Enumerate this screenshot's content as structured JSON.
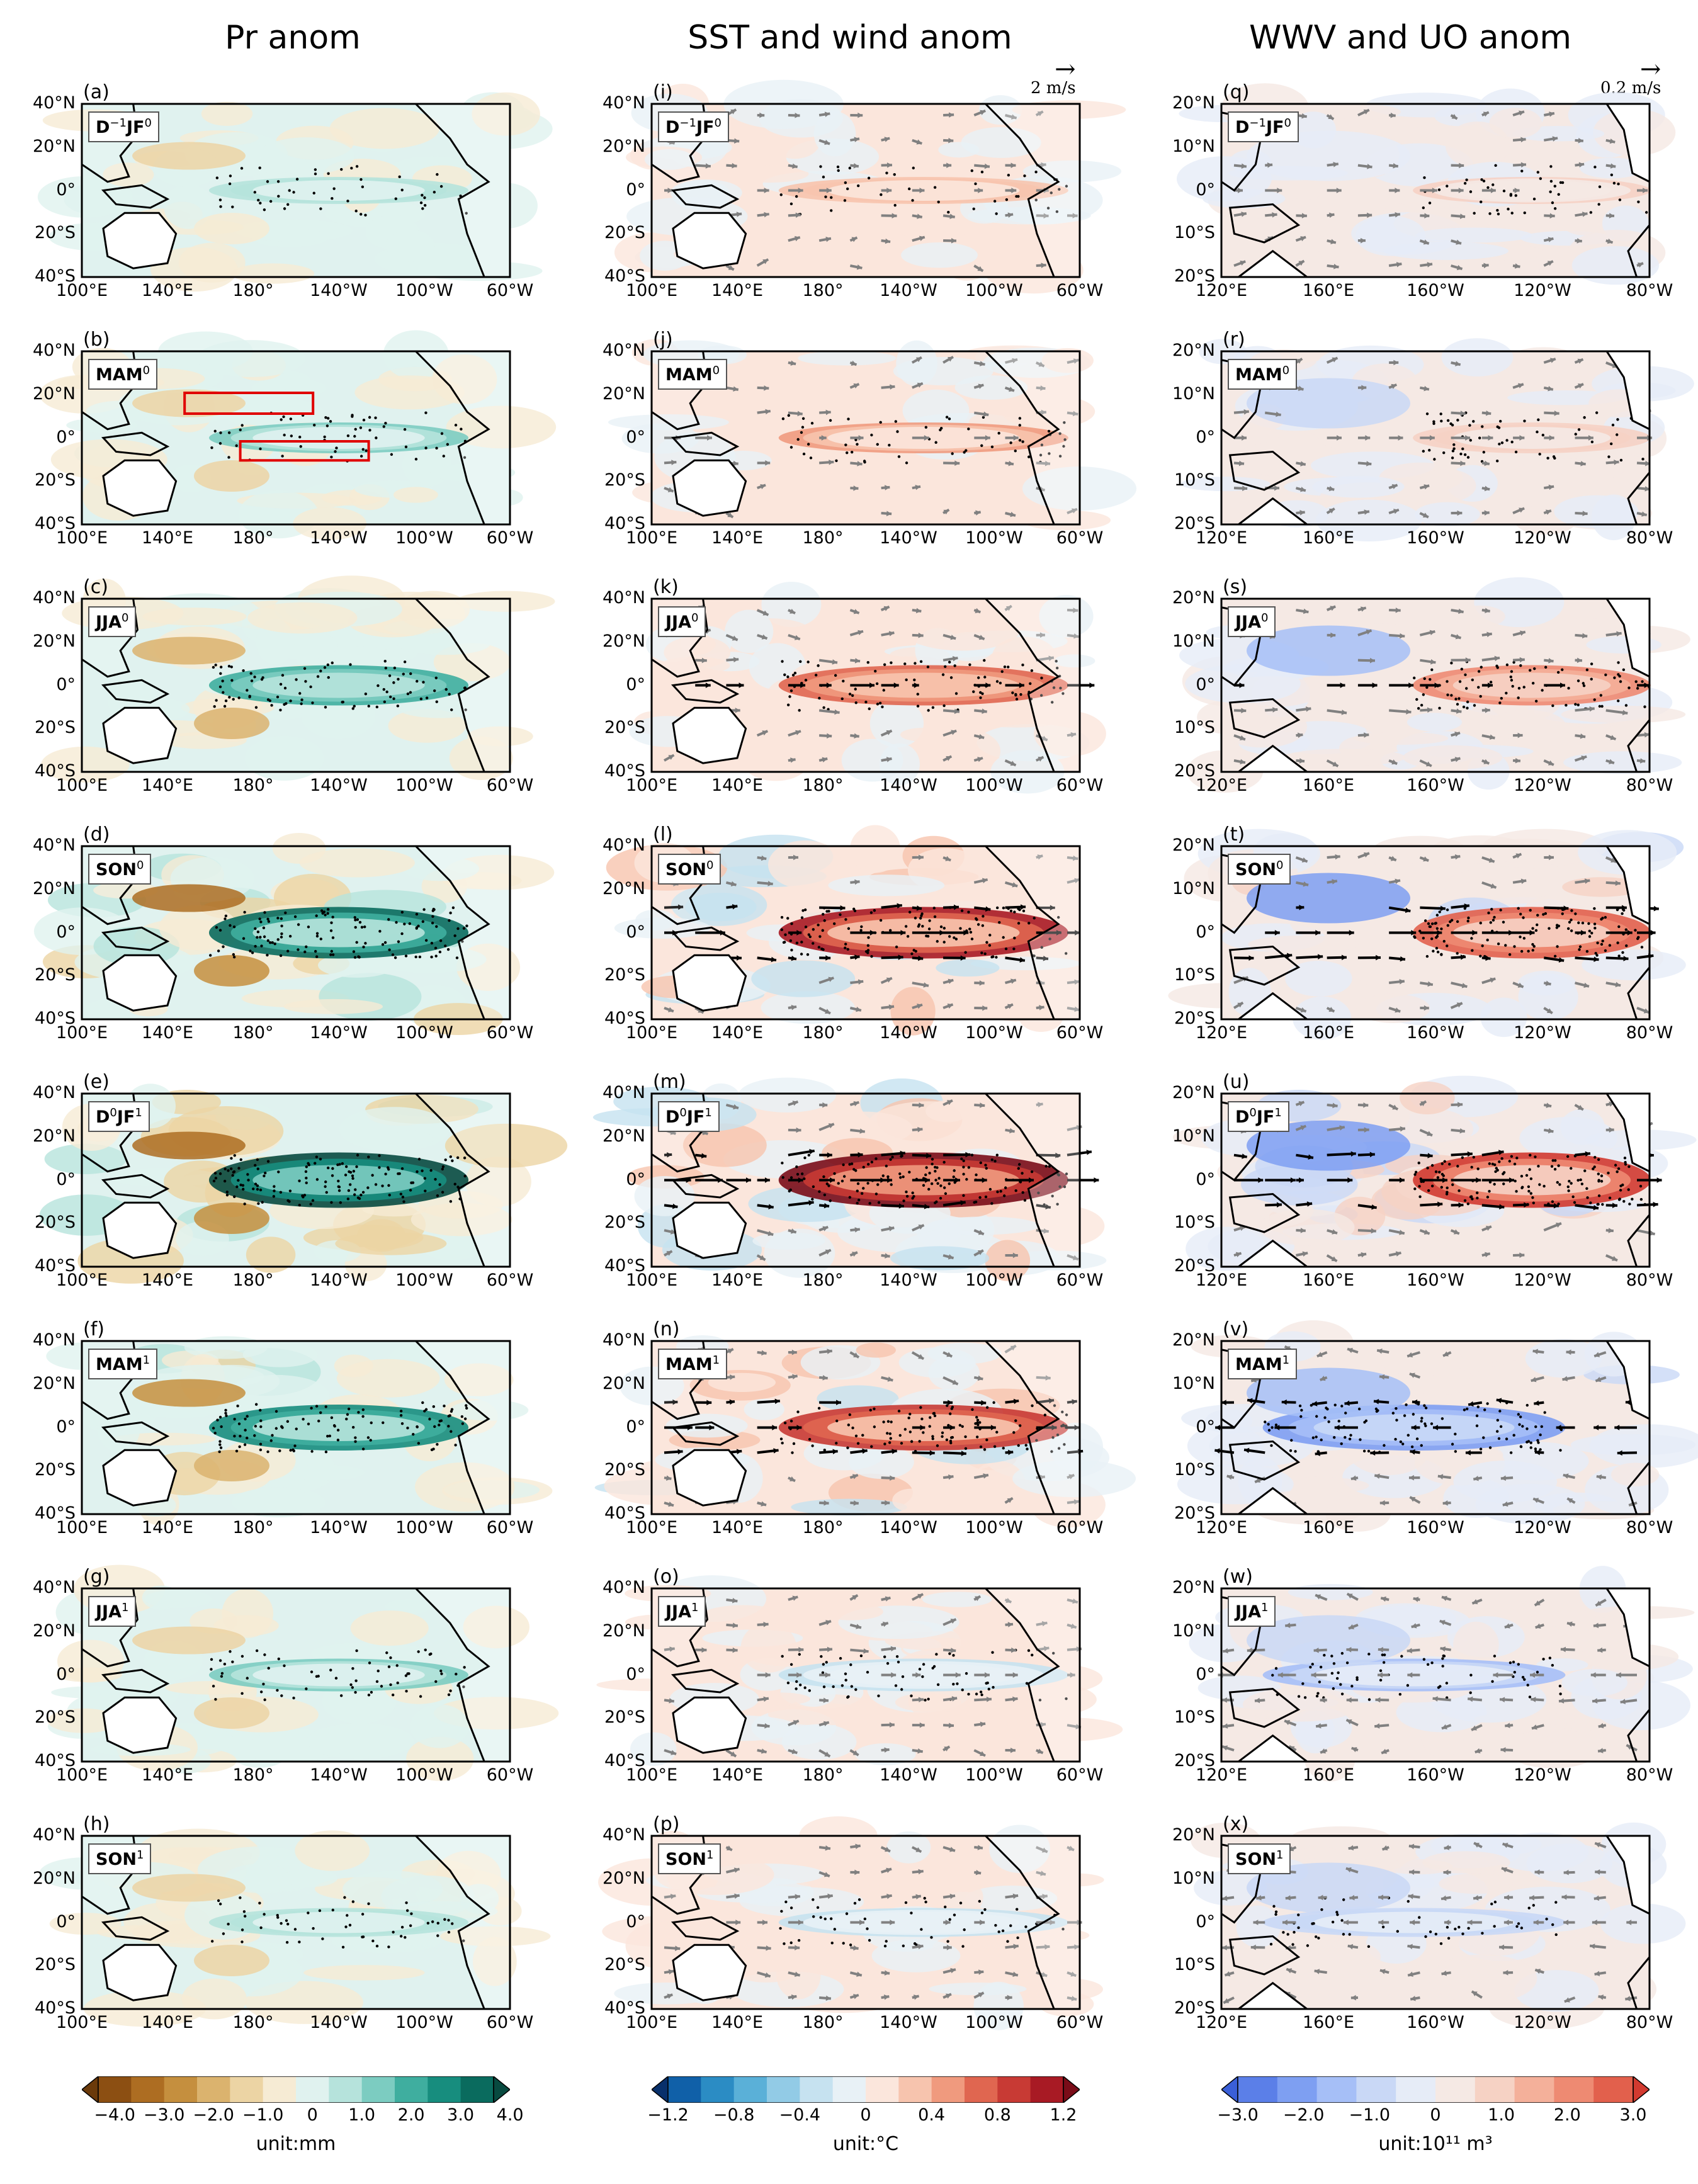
{
  "columns": [
    {
      "title": "Pr anom",
      "unit_label": "unit:mm",
      "colorbar_ticks": [
        "−4.0",
        "−3.0",
        "−2.0",
        "−1.0",
        "0",
        "1.0",
        "2.0",
        "3.0",
        "4.0"
      ],
      "colorbar_colors": [
        "#6b3a0a",
        "#8c4f12",
        "#ad6d22",
        "#c58f3e",
        "#dbb36e",
        "#ecd4a4",
        "#f6ebd4",
        "#e0f2ef",
        "#b6e3dc",
        "#7cccc1",
        "#3fae9f",
        "#178d7e",
        "#0a6b5e",
        "#084a40"
      ],
      "lon_ticks": [
        "100°E",
        "140°E",
        "180°",
        "140°W",
        "100°W",
        "60°W"
      ],
      "lat_ticks": [
        "40°N",
        "20°N",
        "0°",
        "20°S",
        "40°S"
      ],
      "ref_arrow": "",
      "ref_arrow_label": ""
    },
    {
      "title": "SST and wind anom",
      "unit_label": "unit:°C",
      "colorbar_ticks": [
        "−1.2",
        "−0.8",
        "−0.4",
        "0",
        "0.4",
        "0.8",
        "1.2"
      ],
      "colorbar_colors": [
        "#08306b",
        "#1060a8",
        "#2b8cc4",
        "#5ab0d8",
        "#92cbe6",
        "#c6e2f0",
        "#e8f1f6",
        "#fbe6dc",
        "#f7c4ae",
        "#f09a7e",
        "#e06650",
        "#c83a34",
        "#a81a24",
        "#7a0c18"
      ],
      "lon_ticks": [
        "100°E",
        "140°E",
        "180°",
        "140°W",
        "100°W",
        "60°W"
      ],
      "lat_ticks": [
        "40°N",
        "20°N",
        "0°",
        "20°S",
        "40°S"
      ],
      "ref_arrow": "→",
      "ref_arrow_label": "2 m/s"
    },
    {
      "title": "WWV and UO anom",
      "unit_label": "unit:10¹¹ m³",
      "colorbar_ticks": [
        "−3.0",
        "−2.0",
        "−1.0",
        "0",
        "1.0",
        "2.0",
        "3.0"
      ],
      "colorbar_colors": [
        "#3a5fd8",
        "#5b7fe8",
        "#7e9ff2",
        "#a6bff7",
        "#c9d8f6",
        "#e6ecf7",
        "#f5e9e4",
        "#f6d2c4",
        "#f4b09a",
        "#ee8a72",
        "#e2604c",
        "#d23a30"
      ],
      "lon_ticks": [
        "120°E",
        "160°E",
        "160°W",
        "120°W",
        "80°W"
      ],
      "lat_ticks": [
        "20°N",
        "10°N",
        "0°",
        "10°S",
        "20°S"
      ],
      "ref_arrow": "→",
      "ref_arrow_label": "0.2 m/s"
    }
  ],
  "rows": [
    {
      "season": "D",
      "sup1": "−1",
      "mid": "JF",
      "sup2": "0",
      "labels": [
        "(a)",
        "(i)",
        "(q)"
      ],
      "intensity": 0.25
    },
    {
      "season": "MAM",
      "sup1": "",
      "mid": "",
      "sup2": "0",
      "labels": [
        "(b)",
        "(j)",
        "(r)"
      ],
      "intensity": 0.35
    },
    {
      "season": "JJA",
      "sup1": "",
      "mid": "",
      "sup2": "0",
      "labels": [
        "(c)",
        "(k)",
        "(s)"
      ],
      "intensity": 0.6
    },
    {
      "season": "SON",
      "sup1": "",
      "mid": "",
      "sup2": "0",
      "labels": [
        "(d)",
        "(l)",
        "(t)"
      ],
      "intensity": 0.9
    },
    {
      "season": "D",
      "sup1": "0",
      "mid": "JF",
      "sup2": "1",
      "labels": [
        "(e)",
        "(m)",
        "(u)"
      ],
      "intensity": 1.0
    },
    {
      "season": "MAM",
      "sup1": "",
      "mid": "",
      "sup2": "1",
      "labels": [
        "(f)",
        "(n)",
        "(v)"
      ],
      "intensity": 0.75
    },
    {
      "season": "JJA",
      "sup1": "",
      "mid": "",
      "sup2": "1",
      "labels": [
        "(g)",
        "(o)",
        "(w)"
      ],
      "intensity": 0.4
    },
    {
      "season": "SON",
      "sup1": "",
      "mid": "",
      "sup2": "1",
      "labels": [
        "(h)",
        "(p)",
        "(x)"
      ],
      "intensity": 0.3
    }
  ],
  "chart_data": {
    "type": "heatmap",
    "description_fields": {
      "col_titles": [
        "Pr anom",
        "SST and wind anom",
        "WWV and UO anom"
      ],
      "rows": [
        "D−1JF0",
        "MAM0",
        "JJA0",
        "SON0",
        "D0JF1",
        "MAM1",
        "JJA1",
        "SON1"
      ]
    },
    "colorbar_ranges": [
      [
        -4.0,
        4.0
      ],
      [
        -1.2,
        1.2
      ],
      [
        -3.0,
        3.0
      ]
    ],
    "map_extent_col1_2": {
      "lon": [
        100,
        300
      ],
      "lat": [
        -40,
        40
      ]
    },
    "map_extent_col3": {
      "lon": [
        120,
        280
      ],
      "lat": [
        -20,
        20
      ]
    }
  }
}
